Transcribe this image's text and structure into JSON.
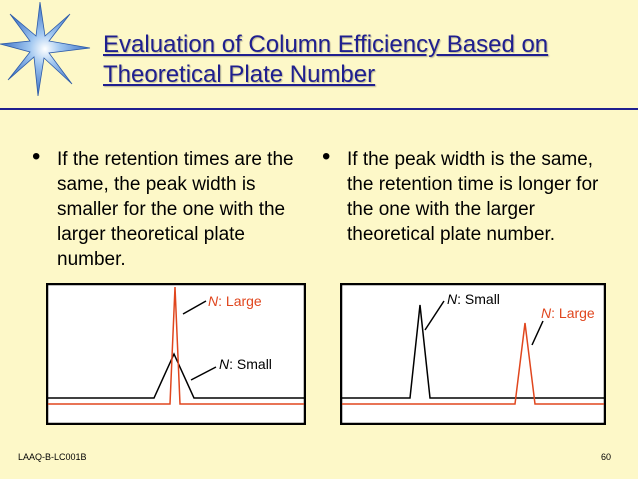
{
  "title": "Evaluation of Column Efficiency Based on Theoretical Plate Number",
  "bullets": [
    "If the retention times are the same, the peak width is smaller for the one with the larger theoretical plate number.",
    "If the peak width is the same, the retention time is longer for the one with the larger theoretical plate number."
  ],
  "bullet_symbol": "•",
  "figures": {
    "left": {
      "label_large_n": "N",
      "label_large_rest": ": Large",
      "label_small_n": "N",
      "label_small_rest": ": Small"
    },
    "right": {
      "label_small_n": "N",
      "label_small_rest": ": Small",
      "label_large_n": "N",
      "label_large_rest": ": Large"
    }
  },
  "colors": {
    "title": "#1f1f8f",
    "background": "#fdf8c8",
    "peak_large": "#e0461e",
    "peak_small": "#000000"
  },
  "footer": {
    "code": "LAAQ-B-LC001B",
    "page": "60"
  }
}
